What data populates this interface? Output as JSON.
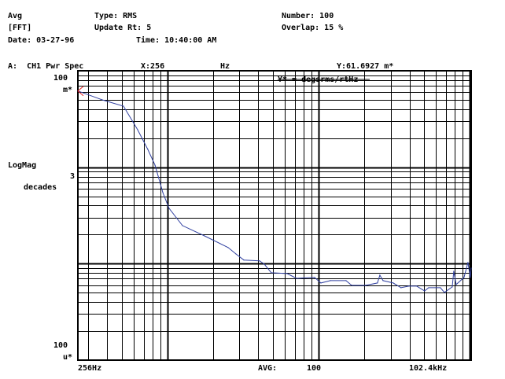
{
  "header": {
    "mode": "Avg",
    "analyzer": "[FFT]",
    "date": "Date: 03-27-96",
    "type": "Type: RMS",
    "update_rate": "Update Rt: 5",
    "time": "Time: 10:40:00 AM",
    "number": "Number: 100",
    "overlap": "Overlap: 15 %"
  },
  "trace": {
    "label": "A:  CH1 Pwr Spec",
    "x_readout": "X:256",
    "x_unit": "Hz",
    "y_readout": "Y:61.6927 m*",
    "unit_note": "Y* = degsrms/rtHz",
    "avg_label": "AVG:",
    "avg_value": "100"
  },
  "colors": {
    "trace": "#3040a0",
    "marker": "#e02020",
    "grid": "#000000"
  },
  "chart_data": {
    "type": "line",
    "x_scale": "log",
    "y_scale": "log",
    "xlim": [
      256,
      102400
    ],
    "ylim_mstar": [
      0.1,
      100
    ],
    "x_tick_labels": {
      "start": "256Hz",
      "end": "102.4kHz"
    },
    "y_top_label": [
      "100",
      "m*"
    ],
    "y_mid_label": "3",
    "y_bottom_label": [
      "100",
      "u*"
    ],
    "ylabel": [
      "LogMag",
      "decades"
    ],
    "grid": true,
    "marker": {
      "x": 256,
      "y": 61.6927
    },
    "series": [
      {
        "x": [
          256,
          371,
          513,
          636,
          743,
          829,
          934,
          1027,
          1260,
          1762,
          2524,
          2845,
          3210,
          4074,
          4380,
          4877,
          6200,
          7150,
          9420,
          10370,
          11980,
          15210,
          16560,
          20530,
          24550,
          25480,
          26750,
          31230,
          35160,
          39620,
          44690,
          50350,
          53570,
          64130,
          68100,
          76730,
          78540,
          81440,
          91800,
          97500,
          100900,
          102400
        ],
        "y": [
          61.69,
          49.9,
          43.0,
          24.5,
          15.3,
          10.5,
          5.46,
          3.75,
          2.48,
          1.94,
          1.47,
          1.26,
          1.09,
          1.07,
          0.99,
          0.805,
          0.79,
          0.705,
          0.72,
          0.63,
          0.667,
          0.667,
          0.596,
          0.596,
          0.63,
          0.76,
          0.667,
          0.63,
          0.563,
          0.585,
          0.585,
          0.522,
          0.563,
          0.563,
          0.503,
          0.574,
          0.835,
          0.607,
          0.72,
          1.03,
          0.72,
          0.9
        ]
      }
    ]
  }
}
